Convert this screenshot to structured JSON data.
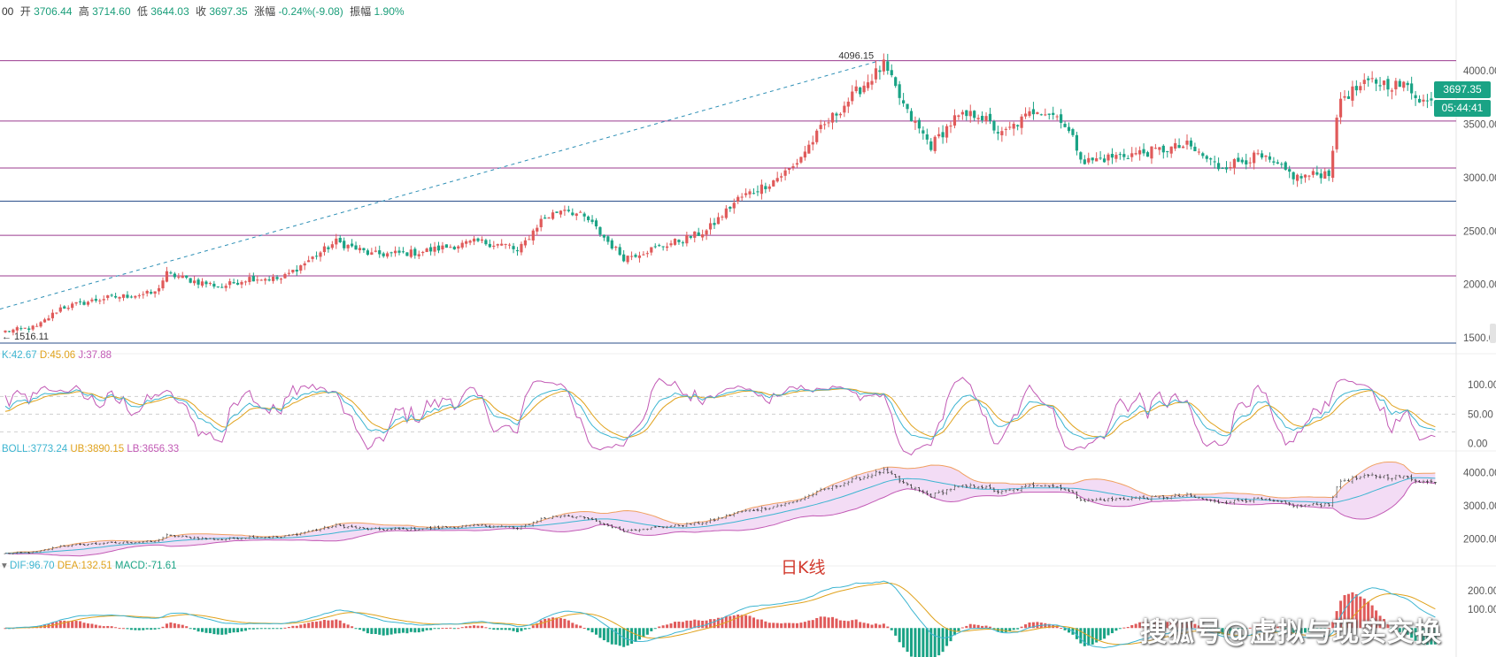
{
  "header": {
    "prefix": "00",
    "open_label": "开",
    "open": "3706.44",
    "high_label": "高",
    "high": "3714.60",
    "low_label": "低",
    "low": "3644.03",
    "close_label": "收",
    "close": "3697.35",
    "change_label": "涨幅",
    "change": "-0.24%(-9.08)",
    "amplitude_label": "振幅",
    "amplitude": "1.90%"
  },
  "price_tag": {
    "price": "3697.35",
    "countdown": "05:44:41"
  },
  "caption": "日K线",
  "watermark": "搜狐号@虚拟与现实交换",
  "colors": {
    "up": "#e05a5a",
    "down": "#1aa385",
    "k": "#3db5d1",
    "d": "#e0a21c",
    "j": "#c25ab5",
    "boll_mid": "#3db5d1",
    "boll_band": "#f0a060",
    "hline": "#9b3b8f",
    "hline_blue": "#2b4f8a"
  },
  "chart_data": [
    {
      "type": "candlestick",
      "name": "price",
      "title": "日K线",
      "y_ticks": [
        4000,
        3500,
        3000,
        2500,
        2000,
        1500
      ],
      "y_tick_labels": [
        "4000.00",
        "3500.00",
        "3000.00",
        "2500.00",
        "2000.00",
        "1500.00"
      ],
      "ylim": [
        1450,
        4250
      ],
      "annotations": [
        {
          "text": "4096.15",
          "value": 4096.15,
          "kind": "high"
        },
        {
          "text": "← 1516.11",
          "value": 1516.11,
          "kind": "low"
        }
      ],
      "horizontal_levels": [
        4096,
        3530,
        3090,
        2780,
        2460,
        2080,
        1450
      ],
      "trend_line": {
        "from_value": 2100,
        "to_value": 4096
      },
      "anchors": [
        [
          0,
          1560
        ],
        [
          8,
          1600
        ],
        [
          14,
          1780
        ],
        [
          25,
          1870
        ],
        [
          38,
          1920
        ],
        [
          41,
          2100
        ],
        [
          48,
          2030
        ],
        [
          55,
          1980
        ],
        [
          62,
          2060
        ],
        [
          70,
          2050
        ],
        [
          80,
          2300
        ],
        [
          84,
          2400
        ],
        [
          93,
          2280
        ],
        [
          105,
          2300
        ],
        [
          112,
          2350
        ],
        [
          120,
          2400
        ],
        [
          128,
          2360
        ],
        [
          130,
          2300
        ],
        [
          136,
          2600
        ],
        [
          142,
          2720
        ],
        [
          148,
          2600
        ],
        [
          153,
          2400
        ],
        [
          157,
          2250
        ],
        [
          164,
          2330
        ],
        [
          172,
          2420
        ],
        [
          178,
          2500
        ],
        [
          186,
          2800
        ],
        [
          194,
          2950
        ],
        [
          200,
          3100
        ],
        [
          207,
          3450
        ],
        [
          216,
          3800
        ],
        [
          223,
          4050
        ],
        [
          229,
          3600
        ],
        [
          235,
          3300
        ],
        [
          241,
          3550
        ],
        [
          247,
          3600
        ],
        [
          253,
          3400
        ],
        [
          262,
          3650
        ],
        [
          268,
          3560
        ],
        [
          274,
          3150
        ],
        [
          282,
          3200
        ],
        [
          292,
          3250
        ],
        [
          300,
          3300
        ],
        [
          308,
          3100
        ],
        [
          318,
          3200
        ],
        [
          328,
          3000
        ],
        [
          336,
          3050
        ],
        [
          339,
          3750
        ],
        [
          347,
          3900
        ],
        [
          356,
          3850
        ],
        [
          360,
          3720
        ],
        [
          363,
          3697
        ]
      ]
    },
    {
      "type": "line",
      "name": "KDJ",
      "legend": [
        {
          "label": "K:42.67",
          "color": "#3db5d1"
        },
        {
          "label": "D:45.06",
          "color": "#e0a21c"
        },
        {
          "label": "J:37.88",
          "color": "#c25ab5"
        }
      ],
      "y_ticks": [
        100,
        50,
        0
      ],
      "y_tick_labels": [
        "100.00",
        "50.00",
        "0.00"
      ],
      "ylim": [
        -5,
        115
      ]
    },
    {
      "type": "line",
      "name": "BOLL",
      "legend": [
        {
          "label": "BOLL:3773.24",
          "color": "#3db5d1"
        },
        {
          "label": "UB:3890.15",
          "color": "#e0a21c"
        },
        {
          "label": "LB:3656.33",
          "color": "#c25ab5"
        }
      ],
      "y_ticks": [
        4000,
        3000,
        2000
      ],
      "y_tick_labels": [
        "4000.00",
        "3000.00",
        "2000.00"
      ],
      "ylim": [
        1450,
        4250
      ]
    },
    {
      "type": "bar",
      "name": "MACD",
      "legend": [
        {
          "label": "DIF:96.70",
          "color": "#3db5d1"
        },
        {
          "label": "DEA:132.51",
          "color": "#e0a21c"
        },
        {
          "label": "MACD:-71.61",
          "color": "#1aa385"
        }
      ],
      "y_ticks": [
        200,
        100
      ],
      "y_tick_labels": [
        "200.00",
        "100.00"
      ],
      "ylim": [
        -140,
        260
      ]
    }
  ]
}
